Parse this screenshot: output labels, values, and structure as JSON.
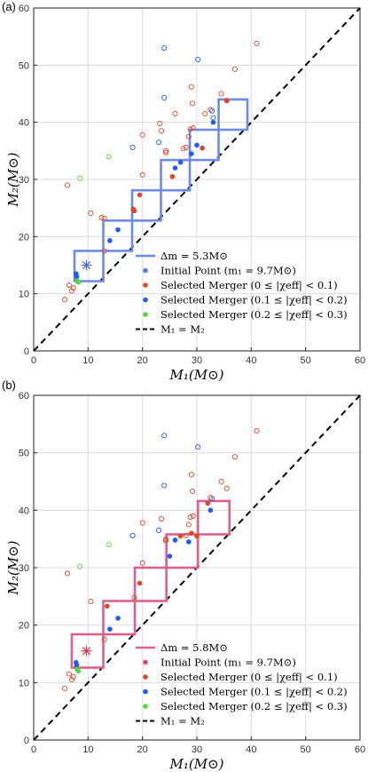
{
  "chart_data": [
    {
      "type": "scatter",
      "panel_label": "(a)",
      "xlabel": "M₁(M⊙)",
      "ylabel": "M₂(M⊙)",
      "xlim": [
        0,
        60
      ],
      "ylim": [
        0,
        60
      ],
      "xticks": [
        "0",
        "10",
        "20",
        "30",
        "40",
        "50",
        "60"
      ],
      "yticks": [
        "0",
        "10",
        "20",
        "30",
        "40",
        "50",
        "60"
      ],
      "grid": true,
      "legend_position": "bottom-right",
      "box_color": "#6f8ae6",
      "legend": [
        {
          "key": "box",
          "text": "Δm = 5.3M⊙"
        },
        {
          "key": "initial",
          "text": "Initial Point (m₁ = 9.7M⊙)"
        },
        {
          "key": "sel_red",
          "text": "Selected Merger (0 ≤ |χeff| < 0.1)"
        },
        {
          "key": "sel_blue",
          "text": "Selected Merger (0.1 ≤ |χeff| < 0.2)"
        },
        {
          "key": "sel_green",
          "text": "Selected Merger (0.2 ≤ |χeff| < 0.3)"
        },
        {
          "key": "diag",
          "text": "M₁ = M₂"
        }
      ],
      "boxes": [
        [
          7.5,
          12.8,
          12.8,
          18.1
        ],
        [
          12.8,
          18.1,
          18.1,
          23.4
        ],
        [
          18.1,
          23.4,
          23.4,
          28.7
        ],
        [
          23.4,
          28.7,
          28.7,
          34.0
        ],
        [
          28.7,
          34.0,
          34.0,
          39.3
        ]
      ],
      "stair_boxes": [
        [
          7.5,
          12.8,
          12.2,
          17.5
        ],
        [
          12.8,
          18.1,
          17.5,
          22.8
        ],
        [
          18.1,
          23.4,
          22.8,
          28.1
        ],
        [
          23.4,
          28.7,
          28.1,
          33.4
        ],
        [
          28.7,
          34.0,
          33.4,
          38.7
        ],
        [
          34.0,
          39.3,
          38.7,
          44.0
        ]
      ],
      "initial_point": {
        "x": 9.7,
        "y": 15.0,
        "color": "#4a66d8"
      },
      "selected": [
        {
          "x": 7.8,
          "y": 13.5,
          "c": "blue"
        },
        {
          "x": 7.9,
          "y": 13.0,
          "c": "blue"
        },
        {
          "x": 8.0,
          "y": 12.3,
          "c": "green"
        },
        {
          "x": 8.2,
          "y": 12.0,
          "c": "green"
        },
        {
          "x": 14.0,
          "y": 19.3,
          "c": "blue"
        },
        {
          "x": 15.5,
          "y": 21.2,
          "c": "blue"
        },
        {
          "x": 18.3,
          "y": 24.8,
          "c": "red"
        },
        {
          "x": 18.5,
          "y": 24.5,
          "c": "red"
        },
        {
          "x": 19.5,
          "y": 27.3,
          "c": "red"
        },
        {
          "x": 25.5,
          "y": 30.5,
          "c": "red"
        },
        {
          "x": 26.0,
          "y": 32.0,
          "c": "blue"
        },
        {
          "x": 27.0,
          "y": 33.0,
          "c": "blue"
        },
        {
          "x": 29.0,
          "y": 34.5,
          "c": "blue"
        },
        {
          "x": 30.0,
          "y": 36.0,
          "c": "blue"
        },
        {
          "x": 31.0,
          "y": 35.5,
          "c": "red"
        },
        {
          "x": 33.0,
          "y": 40.0,
          "c": "blue"
        },
        {
          "x": 35.5,
          "y": 43.8,
          "c": "red"
        }
      ],
      "others": [
        {
          "x": 5.7,
          "y": 9.0,
          "c": "red"
        },
        {
          "x": 6.5,
          "y": 11.5,
          "c": "red"
        },
        {
          "x": 7.0,
          "y": 10.5,
          "c": "red"
        },
        {
          "x": 7.3,
          "y": 11.0,
          "c": "red"
        },
        {
          "x": 6.2,
          "y": 29.0,
          "c": "red"
        },
        {
          "x": 8.5,
          "y": 30.2,
          "c": "green"
        },
        {
          "x": 10.5,
          "y": 24.1,
          "c": "red"
        },
        {
          "x": 12.5,
          "y": 23.3,
          "c": "red"
        },
        {
          "x": 13.0,
          "y": 23.2,
          "c": "red"
        },
        {
          "x": 13.0,
          "y": 17.5,
          "c": "red"
        },
        {
          "x": 13.8,
          "y": 34.0,
          "c": "green"
        },
        {
          "x": 18.2,
          "y": 35.6,
          "c": "blue"
        },
        {
          "x": 20.0,
          "y": 37.8,
          "c": "red"
        },
        {
          "x": 20.0,
          "y": 30.8,
          "c": "red"
        },
        {
          "x": 23.0,
          "y": 36.5,
          "c": "blue"
        },
        {
          "x": 23.5,
          "y": 38.5,
          "c": "red"
        },
        {
          "x": 23.2,
          "y": 39.8,
          "c": "red"
        },
        {
          "x": 24.0,
          "y": 44.3,
          "c": "blue"
        },
        {
          "x": 24.0,
          "y": 53.0,
          "c": "blue"
        },
        {
          "x": 24.3,
          "y": 35.0,
          "c": "red"
        },
        {
          "x": 24.3,
          "y": 34.7,
          "c": "red"
        },
        {
          "x": 26.0,
          "y": 41.5,
          "c": "red"
        },
        {
          "x": 27.5,
          "y": 35.4,
          "c": "red"
        },
        {
          "x": 28.0,
          "y": 35.6,
          "c": "red"
        },
        {
          "x": 28.5,
          "y": 37.5,
          "c": "red"
        },
        {
          "x": 28.8,
          "y": 38.8,
          "c": "red"
        },
        {
          "x": 29.3,
          "y": 39.0,
          "c": "red"
        },
        {
          "x": 29.0,
          "y": 46.2,
          "c": "red"
        },
        {
          "x": 29.2,
          "y": 43.3,
          "c": "red"
        },
        {
          "x": 30.2,
          "y": 51.0,
          "c": "blue"
        },
        {
          "x": 31.5,
          "y": 41.5,
          "c": "red"
        },
        {
          "x": 32.5,
          "y": 42.2,
          "c": "red"
        },
        {
          "x": 32.8,
          "y": 42.0,
          "c": "blue"
        },
        {
          "x": 33.0,
          "y": 40.8,
          "c": "blue"
        },
        {
          "x": 34.5,
          "y": 45.0,
          "c": "red"
        },
        {
          "x": 35.5,
          "y": 43.8,
          "c": "red"
        },
        {
          "x": 37.0,
          "y": 49.3,
          "c": "red"
        },
        {
          "x": 41.0,
          "y": 53.8,
          "c": "red"
        }
      ]
    },
    {
      "type": "scatter",
      "panel_label": "(b)",
      "xlabel": "M₁(M⊙)",
      "ylabel": "M₂(M⊙)",
      "xlim": [
        0,
        60
      ],
      "ylim": [
        0,
        60
      ],
      "xticks": [
        "0",
        "10",
        "20",
        "30",
        "40",
        "50",
        "60"
      ],
      "yticks": [
        "0",
        "10",
        "20",
        "30",
        "40",
        "50",
        "60"
      ],
      "grid": true,
      "legend_position": "bottom-right",
      "box_color": "#dd5f8f",
      "legend": [
        {
          "key": "box",
          "text": "Δm = 5.8M⊙"
        },
        {
          "key": "initial",
          "text": "Initial Point (m₁ = 9.7M⊙)"
        },
        {
          "key": "sel_red",
          "text": "Selected Merger (0 ≤ |χeff| < 0.1)"
        },
        {
          "key": "sel_blue",
          "text": "Selected Merger (0.1 ≤ |χeff| < 0.2)"
        },
        {
          "key": "sel_green",
          "text": "Selected Merger (0.2 ≤ |χeff| < 0.3)"
        },
        {
          "key": "diag",
          "text": "M₁ = M₂"
        }
      ],
      "stair_boxes": [
        [
          7.0,
          12.8,
          12.6,
          18.4
        ],
        [
          12.8,
          18.6,
          18.4,
          24.2
        ],
        [
          18.6,
          24.4,
          24.2,
          30.0
        ],
        [
          24.4,
          30.2,
          30.0,
          35.8
        ],
        [
          30.2,
          36.0,
          35.8,
          41.6
        ]
      ],
      "initial_point": {
        "x": 9.7,
        "y": 15.5,
        "color": "#d9364f"
      },
      "selected": [
        {
          "x": 7.8,
          "y": 13.5,
          "c": "blue"
        },
        {
          "x": 7.9,
          "y": 13.0,
          "c": "blue"
        },
        {
          "x": 8.0,
          "y": 12.3,
          "c": "green"
        },
        {
          "x": 8.2,
          "y": 12.0,
          "c": "green"
        },
        {
          "x": 14.0,
          "y": 19.3,
          "c": "blue"
        },
        {
          "x": 15.5,
          "y": 21.2,
          "c": "blue"
        },
        {
          "x": 13.5,
          "y": 23.3,
          "c": "red"
        },
        {
          "x": 19.5,
          "y": 27.3,
          "c": "red"
        },
        {
          "x": 25.0,
          "y": 32.0,
          "c": "blue"
        },
        {
          "x": 26.0,
          "y": 34.8,
          "c": "blue"
        },
        {
          "x": 27.0,
          "y": 35.5,
          "c": "red"
        },
        {
          "x": 28.5,
          "y": 34.5,
          "c": "blue"
        },
        {
          "x": 29.0,
          "y": 36.0,
          "c": "red"
        },
        {
          "x": 30.0,
          "y": 35.5,
          "c": "red"
        },
        {
          "x": 32.5,
          "y": 40.0,
          "c": "blue"
        },
        {
          "x": 32.0,
          "y": 41.2,
          "c": "red"
        }
      ],
      "others": [
        {
          "x": 5.7,
          "y": 9.0,
          "c": "red"
        },
        {
          "x": 6.5,
          "y": 11.5,
          "c": "red"
        },
        {
          "x": 7.0,
          "y": 10.5,
          "c": "red"
        },
        {
          "x": 7.3,
          "y": 11.0,
          "c": "red"
        },
        {
          "x": 6.2,
          "y": 29.0,
          "c": "red"
        },
        {
          "x": 8.5,
          "y": 30.2,
          "c": "green"
        },
        {
          "x": 10.5,
          "y": 24.1,
          "c": "red"
        },
        {
          "x": 13.0,
          "y": 17.5,
          "c": "red"
        },
        {
          "x": 13.8,
          "y": 34.0,
          "c": "green"
        },
        {
          "x": 18.2,
          "y": 35.6,
          "c": "blue"
        },
        {
          "x": 20.0,
          "y": 37.8,
          "c": "red"
        },
        {
          "x": 20.0,
          "y": 30.8,
          "c": "red"
        },
        {
          "x": 18.5,
          "y": 24.8,
          "c": "red"
        },
        {
          "x": 23.0,
          "y": 36.5,
          "c": "blue"
        },
        {
          "x": 23.5,
          "y": 38.5,
          "c": "red"
        },
        {
          "x": 24.0,
          "y": 44.3,
          "c": "blue"
        },
        {
          "x": 24.0,
          "y": 53.0,
          "c": "blue"
        },
        {
          "x": 24.3,
          "y": 35.0,
          "c": "red"
        },
        {
          "x": 24.3,
          "y": 34.7,
          "c": "red"
        },
        {
          "x": 28.0,
          "y": 35.6,
          "c": "red"
        },
        {
          "x": 28.5,
          "y": 37.5,
          "c": "red"
        },
        {
          "x": 28.8,
          "y": 38.8,
          "c": "red"
        },
        {
          "x": 29.3,
          "y": 39.0,
          "c": "red"
        },
        {
          "x": 29.0,
          "y": 46.2,
          "c": "red"
        },
        {
          "x": 29.2,
          "y": 43.3,
          "c": "red"
        },
        {
          "x": 30.2,
          "y": 51.0,
          "c": "blue"
        },
        {
          "x": 32.5,
          "y": 42.2,
          "c": "red"
        },
        {
          "x": 32.8,
          "y": 42.0,
          "c": "blue"
        },
        {
          "x": 34.5,
          "y": 45.0,
          "c": "red"
        },
        {
          "x": 35.5,
          "y": 43.8,
          "c": "red"
        },
        {
          "x": 37.0,
          "y": 49.3,
          "c": "red"
        },
        {
          "x": 41.0,
          "y": 53.8,
          "c": "red"
        }
      ]
    }
  ],
  "colors": {
    "red": "#d9482b",
    "blue": "#1f5cf0",
    "green": "#59d63e",
    "grid": "#dcdcdc"
  }
}
